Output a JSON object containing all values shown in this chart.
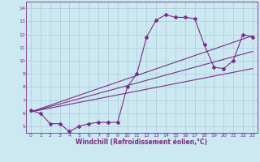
{
  "xlabel": "Windchill (Refroidissement éolien,°C)",
  "background_color": "#cce8f0",
  "grid_color": "#aaccdd",
  "line_color": "#7b2d8b",
  "xlim": [
    -0.5,
    23.5
  ],
  "ylim": [
    4.5,
    14.5
  ],
  "xticks": [
    0,
    1,
    2,
    3,
    4,
    5,
    6,
    7,
    8,
    9,
    10,
    11,
    12,
    13,
    14,
    15,
    16,
    17,
    18,
    19,
    20,
    21,
    22,
    23
  ],
  "yticks": [
    5,
    6,
    7,
    8,
    9,
    10,
    11,
    12,
    13,
    14
  ],
  "curve1_x": [
    0,
    1,
    2,
    3,
    4,
    5,
    6,
    7,
    8,
    9,
    10,
    11,
    12,
    13,
    14,
    15,
    16,
    17,
    18,
    19,
    20,
    21,
    22,
    23
  ],
  "curve1_y": [
    6.2,
    6.0,
    5.2,
    5.2,
    4.6,
    5.0,
    5.2,
    5.3,
    5.3,
    5.3,
    8.0,
    9.0,
    11.8,
    13.1,
    13.5,
    13.3,
    13.3,
    13.2,
    11.2,
    9.5,
    9.4,
    10.0,
    12.0,
    11.8
  ],
  "line1_x": [
    0,
    23
  ],
  "line1_y": [
    6.1,
    9.4
  ],
  "line2_x": [
    0,
    23
  ],
  "line2_y": [
    6.1,
    11.9
  ],
  "line3_x": [
    0,
    23
  ],
  "line3_y": [
    6.1,
    10.7
  ]
}
